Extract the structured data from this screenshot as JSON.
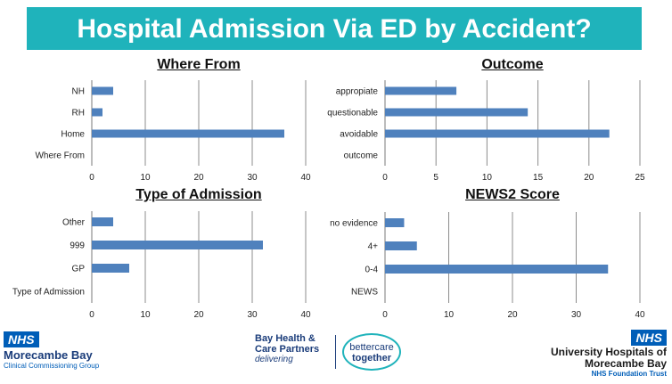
{
  "title": "Hospital Admission Via ED by Accident?",
  "colors": {
    "banner": "#1fb3bb",
    "bar": "#4f81bd",
    "grid": "#8c8c8c",
    "nhs_blue": "#005eb8"
  },
  "chart_data": [
    {
      "id": "where_from",
      "type": "bar",
      "orientation": "horizontal",
      "title": "Where From",
      "categories": [
        "Where From",
        "Home",
        "RH",
        "NH"
      ],
      "values": [
        0,
        36,
        2,
        4
      ],
      "xlim": [
        0,
        40
      ],
      "xticks": [
        0,
        10,
        20,
        30,
        40
      ],
      "grid": true
    },
    {
      "id": "outcome",
      "type": "bar",
      "orientation": "horizontal",
      "title": "Outcome",
      "categories": [
        "outcome",
        "avoidable",
        "questionable",
        "appropiate"
      ],
      "values": [
        0,
        22,
        14,
        7
      ],
      "xlim": [
        0,
        25
      ],
      "xticks": [
        0,
        5,
        10,
        15,
        20,
        25
      ],
      "grid": true
    },
    {
      "id": "type_of_admission",
      "type": "bar",
      "orientation": "horizontal",
      "title": "Type of Admission",
      "categories": [
        "Type of Admission",
        "GP",
        "999",
        "Other"
      ],
      "values": [
        0,
        7,
        32,
        4
      ],
      "xlim": [
        0,
        40
      ],
      "xticks": [
        0,
        10,
        20,
        30,
        40
      ],
      "grid": true
    },
    {
      "id": "news2_score",
      "type": "bar",
      "orientation": "horizontal",
      "title": "NEWS2 Score",
      "categories": [
        "NEWS",
        "0-4",
        "4+",
        "no evidence"
      ],
      "values": [
        0,
        35,
        5,
        3
      ],
      "xlim": [
        0,
        40
      ],
      "xticks": [
        0,
        10,
        20,
        30,
        40
      ],
      "grid": true
    }
  ],
  "footer": {
    "left": {
      "badge": "NHS",
      "name": "Morecambe Bay",
      "subtitle": "Clinical Commissioning Group"
    },
    "center": {
      "name_line1": "Bay Health &",
      "name_line2": "Care Partners",
      "tagline": "delivering",
      "bct_line1": "bettercare",
      "bct_line2": "together"
    },
    "right": {
      "badge": "NHS",
      "name_line1": "University Hospitals of",
      "name_line2": "Morecambe Bay",
      "subtitle": "NHS Foundation Trust"
    }
  }
}
